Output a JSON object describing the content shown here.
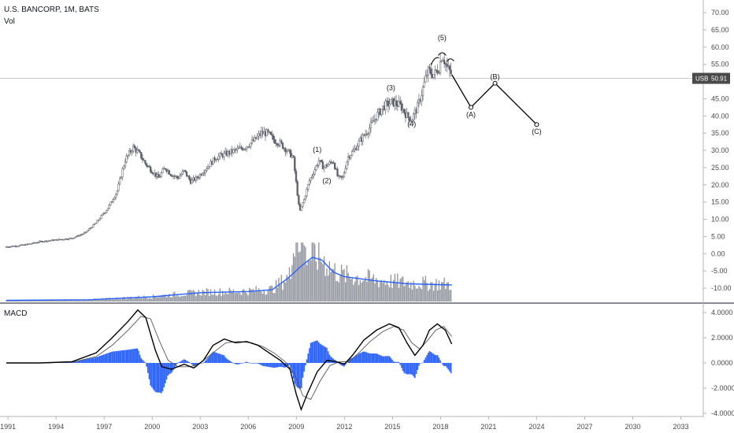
{
  "header": {
    "symbol": "U.S. BANCORP, 1M, BATS",
    "volume_label": "Vol"
  },
  "macd_panel": {
    "title": "MACD"
  },
  "price_tag": {
    "currency": "USB",
    "value": "50.91"
  },
  "colors": {
    "candle": "#5d606b",
    "volume_bar": "#9598a1",
    "volume_ma": "#2962ff",
    "macd_line": "#000000",
    "signal_line": "#555555",
    "histogram": "#2962ff",
    "wave_path": "#000000",
    "axis_text": "#4a4a4a",
    "divider": "#b2b5be",
    "price_line": "#c9c9c9",
    "tag_bg": "#4a4a4a"
  },
  "chart_data": [
    {
      "type": "candlestick",
      "panel": "price",
      "y_ticks": [
        "70.00",
        "65.00",
        "60.00",
        "55.00",
        "50.00",
        "45.00",
        "40.00",
        "35.00",
        "30.00",
        "25.00",
        "20.00",
        "15.00",
        "10.00",
        "5.00",
        "0.00",
        "-5.00",
        "-10.00"
      ],
      "ylim": [
        -12,
        72
      ],
      "x_ticks": [
        "1991",
        "1994",
        "1997",
        "2000",
        "2003",
        "2006",
        "2009",
        "2012",
        "2015",
        "2018",
        "2021",
        "2024",
        "2027",
        "2030",
        "2033"
      ],
      "price_path": [
        [
          1990.9,
          2
        ],
        [
          1992,
          2.5
        ],
        [
          1993,
          3.5
        ],
        [
          1994,
          4
        ],
        [
          1995,
          4.5
        ],
        [
          1995.8,
          6
        ],
        [
          1996.5,
          9
        ],
        [
          1997.2,
          13
        ],
        [
          1997.8,
          18
        ],
        [
          1998.3,
          27
        ],
        [
          1998.8,
          31
        ],
        [
          1999.2,
          29
        ],
        [
          1999.6,
          26
        ],
        [
          2000.0,
          24
        ],
        [
          2000.4,
          22
        ],
        [
          2000.8,
          25
        ],
        [
          2001.2,
          23
        ],
        [
          2001.6,
          22
        ],
        [
          2002.0,
          24
        ],
        [
          2002.4,
          21
        ],
        [
          2002.8,
          22
        ],
        [
          2003.2,
          24
        ],
        [
          2003.6,
          26
        ],
        [
          2004.0,
          28
        ],
        [
          2004.6,
          29
        ],
        [
          2005.2,
          30
        ],
        [
          2005.8,
          31
        ],
        [
          2006.4,
          33
        ],
        [
          2006.8,
          35
        ],
        [
          2007.2,
          35
        ],
        [
          2007.6,
          33
        ],
        [
          2008.0,
          32
        ],
        [
          2008.4,
          30
        ],
        [
          2008.8,
          28
        ],
        [
          2009.0,
          20
        ],
        [
          2009.2,
          12
        ],
        [
          2009.5,
          16
        ],
        [
          2009.8,
          21
        ],
        [
          2010.1,
          24
        ],
        [
          2010.4,
          27
        ],
        [
          2010.7,
          25
        ],
        [
          2011.0,
          26
        ],
        [
          2011.3,
          27
        ],
        [
          2011.6,
          22
        ],
        [
          2011.9,
          22
        ],
        [
          2012.2,
          28
        ],
        [
          2012.6,
          30
        ],
        [
          2013.0,
          33
        ],
        [
          2013.5,
          36
        ],
        [
          2014.0,
          40
        ],
        [
          2014.5,
          43
        ],
        [
          2015.0,
          44
        ],
        [
          2015.5,
          43
        ],
        [
          2015.9,
          40
        ],
        [
          2016.2,
          39
        ],
        [
          2016.6,
          43
        ],
        [
          2016.9,
          48
        ],
        [
          2017.2,
          53
        ],
        [
          2017.6,
          52
        ],
        [
          2017.9,
          54
        ],
        [
          2018.1,
          58
        ],
        [
          2018.4,
          54
        ],
        [
          2018.7,
          52
        ]
      ],
      "projection": {
        "points": [
          {
            "x": 2019.9,
            "y": 42.5,
            "label": "(A)"
          },
          {
            "x": 2021.4,
            "y": 49.5,
            "label": "(B)"
          },
          {
            "x": 2024.0,
            "y": 37.5,
            "label": "(C)"
          }
        ],
        "start": {
          "x": 2018.7,
          "y": 52
        }
      },
      "wave_labels": [
        {
          "x": 2010.3,
          "y": 29.5,
          "label": "(1)"
        },
        {
          "x": 2010.9,
          "y": 20.5,
          "label": "(2)"
        },
        {
          "x": 2014.9,
          "y": 47.5,
          "label": "(3)"
        },
        {
          "x": 2016.2,
          "y": 37.0,
          "label": "(4)"
        },
        {
          "x": 2018.1,
          "y": 62.0,
          "label": "(5)"
        }
      ],
      "current_price": 50.91
    },
    {
      "type": "bar",
      "panel": "volume",
      "name": "Vol",
      "description_values": "relative monthly volume with moving average peaking around 2009-2010",
      "ma_path": [
        [
          1990.9,
          0.02
        ],
        [
          1996,
          0.03
        ],
        [
          2000,
          0.08
        ],
        [
          2003,
          0.15
        ],
        [
          2006,
          0.17
        ],
        [
          2007.5,
          0.2
        ],
        [
          2008.5,
          0.4
        ],
        [
          2009.3,
          0.6
        ],
        [
          2010,
          0.75
        ],
        [
          2010.6,
          0.7
        ],
        [
          2011.3,
          0.5
        ],
        [
          2012,
          0.42
        ],
        [
          2014,
          0.35
        ],
        [
          2016,
          0.3
        ],
        [
          2018.7,
          0.28
        ]
      ]
    },
    {
      "type": "line",
      "panel": "macd",
      "y_ticks": [
        "4.0000",
        "2.0000",
        "0.0000",
        "-2.0000",
        "-4.0000"
      ],
      "ylim": [
        -4.3,
        4.3
      ],
      "macd_path": [
        [
          1990.9,
          0
        ],
        [
          1993,
          0
        ],
        [
          1995,
          0.1
        ],
        [
          1996.5,
          0.8
        ],
        [
          1997.5,
          2
        ],
        [
          1998.5,
          3.3
        ],
        [
          1999.1,
          4.2
        ],
        [
          1999.6,
          3.6
        ],
        [
          2000.2,
          1
        ],
        [
          2000.6,
          -0.3
        ],
        [
          2001.2,
          -0.5
        ],
        [
          2002.0,
          -0.1
        ],
        [
          2002.6,
          -0.4
        ],
        [
          2003.2,
          0.2
        ],
        [
          2003.8,
          1.4
        ],
        [
          2004.5,
          1.9
        ],
        [
          2005.2,
          1.6
        ],
        [
          2005.9,
          1.7
        ],
        [
          2006.6,
          1.4
        ],
        [
          2007.3,
          0.8
        ],
        [
          2008.0,
          0.2
        ],
        [
          2008.6,
          -0.5
        ],
        [
          2009.0,
          -2.5
        ],
        [
          2009.3,
          -3.7
        ],
        [
          2009.7,
          -2.4
        ],
        [
          2010.3,
          -0.7
        ],
        [
          2010.9,
          0.2
        ],
        [
          2011.5,
          0.1
        ],
        [
          2012.0,
          -0.1
        ],
        [
          2012.5,
          0.6
        ],
        [
          2013.2,
          1.8
        ],
        [
          2014.0,
          2.6
        ],
        [
          2014.8,
          3.1
        ],
        [
          2015.4,
          2.8
        ],
        [
          2015.9,
          1.6
        ],
        [
          2016.4,
          0.6
        ],
        [
          2016.9,
          1.4
        ],
        [
          2017.3,
          2.6
        ],
        [
          2017.8,
          3.1
        ],
        [
          2018.3,
          2.6
        ],
        [
          2018.7,
          1.5
        ]
      ],
      "signal_path": [
        [
          1990.9,
          0
        ],
        [
          1993,
          0
        ],
        [
          1995,
          0.05
        ],
        [
          1996.5,
          0.5
        ],
        [
          1997.5,
          1.4
        ],
        [
          1998.5,
          2.6
        ],
        [
          1999.3,
          3.7
        ],
        [
          1999.9,
          3.5
        ],
        [
          2000.5,
          1.6
        ],
        [
          2001.0,
          0.2
        ],
        [
          2001.6,
          -0.3
        ],
        [
          2002.4,
          -0.3
        ],
        [
          2003.0,
          0
        ],
        [
          2003.8,
          0.8
        ],
        [
          2004.6,
          1.6
        ],
        [
          2005.4,
          1.7
        ],
        [
          2006.2,
          1.6
        ],
        [
          2006.9,
          1.3
        ],
        [
          2007.6,
          0.8
        ],
        [
          2008.3,
          0.1
        ],
        [
          2008.9,
          -0.9
        ],
        [
          2009.4,
          -2.6
        ],
        [
          2009.9,
          -2.9
        ],
        [
          2010.5,
          -1.4
        ],
        [
          2011.1,
          -0.2
        ],
        [
          2011.7,
          0.1
        ],
        [
          2012.3,
          0.1
        ],
        [
          2012.9,
          0.8
        ],
        [
          2013.6,
          1.7
        ],
        [
          2014.4,
          2.5
        ],
        [
          2015.1,
          2.9
        ],
        [
          2015.7,
          2.6
        ],
        [
          2016.2,
          1.6
        ],
        [
          2016.7,
          1.1
        ],
        [
          2017.2,
          1.8
        ],
        [
          2017.7,
          2.6
        ],
        [
          2018.2,
          2.9
        ],
        [
          2018.7,
          2.1
        ]
      ],
      "histogram_note": "histogram = macd - signal"
    }
  ]
}
